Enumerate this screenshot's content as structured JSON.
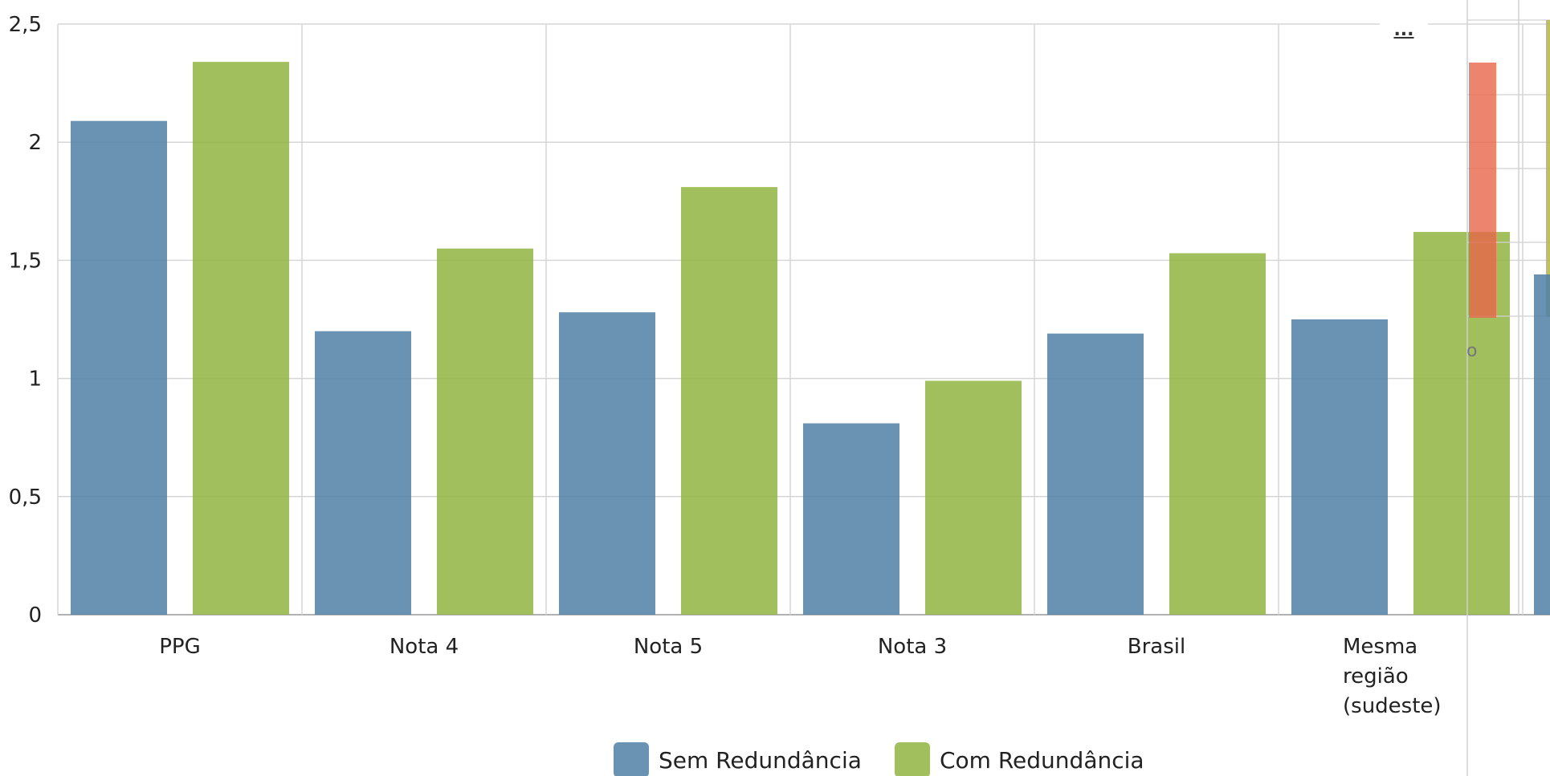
{
  "chart_data": {
    "type": "bar",
    "categories": [
      "PPG",
      "Nota 4",
      "Nota 5",
      "Nota 3",
      "Brasil",
      "Mesma região (sudeste)"
    ],
    "category_lines": [
      [
        "PPG"
      ],
      [
        "Nota 4"
      ],
      [
        "Nota 5"
      ],
      [
        "Nota 3"
      ],
      [
        "Brasil"
      ],
      [
        "Mesma",
        "região",
        "(sudeste)"
      ]
    ],
    "series": [
      {
        "name": "Sem Redundância",
        "color": "#4f7fa6",
        "values": [
          2.09,
          1.2,
          1.28,
          0.81,
          1.19,
          1.25
        ]
      },
      {
        "name": "Com Redundância",
        "color": "#91b43f",
        "values": [
          2.34,
          1.55,
          1.81,
          0.99,
          1.53,
          1.62
        ]
      }
    ],
    "ylim": [
      0,
      2.5
    ],
    "yticks": [
      "0",
      "0,5",
      "1",
      "1,5",
      "2",
      "2,5"
    ],
    "grid": true,
    "legend_position": "bottom-center"
  },
  "menu": {
    "label": "..."
  },
  "overlay": {
    "red_bar_color": "#e8674a",
    "olive_color": "#b5b545",
    "blue_color": "#4f7fa6",
    "fragment_text": "o"
  }
}
